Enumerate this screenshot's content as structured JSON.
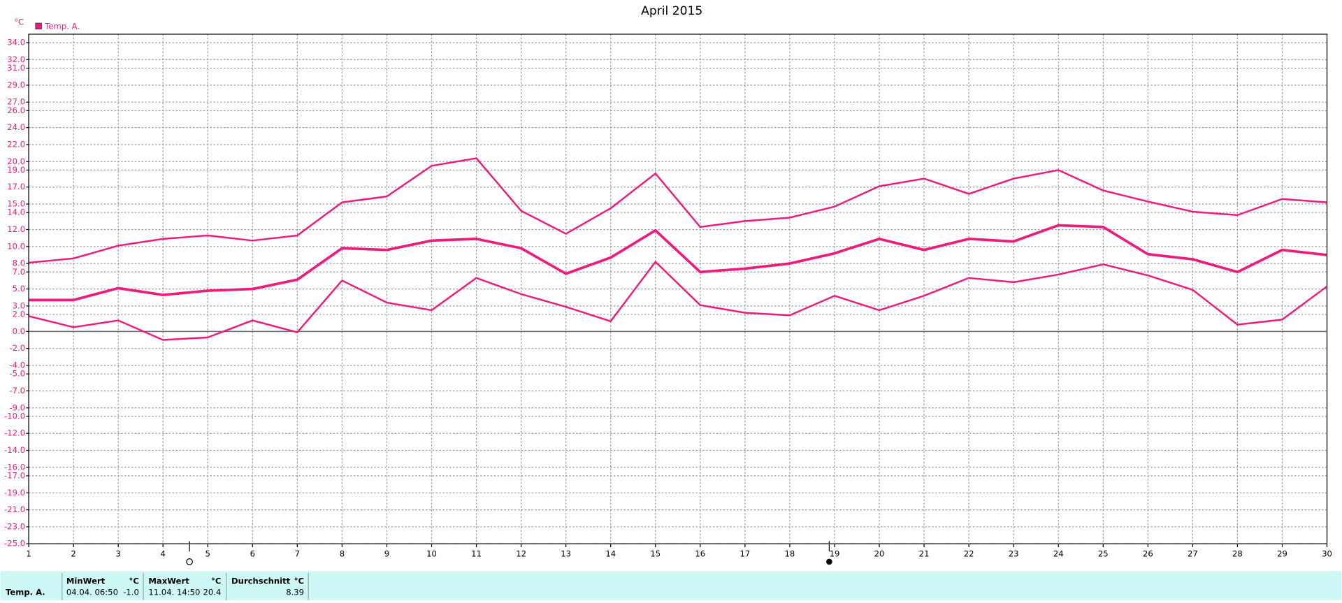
{
  "chart_data": {
    "type": "line",
    "title": "April 2015",
    "y_label": "°C",
    "x": [
      1,
      2,
      3,
      4,
      5,
      6,
      7,
      8,
      9,
      10,
      11,
      12,
      13,
      14,
      15,
      16,
      17,
      18,
      19,
      20,
      21,
      22,
      23,
      24,
      25,
      26,
      27,
      28,
      29,
      30
    ],
    "xlim": [
      1,
      30
    ],
    "xticks": [
      1,
      2,
      3,
      4,
      5,
      6,
      7,
      8,
      9,
      10,
      11,
      12,
      13,
      14,
      15,
      16,
      17,
      18,
      19,
      20,
      21,
      22,
      23,
      24,
      25,
      26,
      27,
      28,
      29,
      30
    ],
    "ylim": [
      -25,
      35
    ],
    "yticks": [
      {
        "value": 34,
        "label": "34.0"
      },
      {
        "value": 32,
        "label": "32.0"
      },
      {
        "value": 31,
        "label": "31.0"
      },
      {
        "value": 29,
        "label": "29.0"
      },
      {
        "value": 27,
        "label": "27.0"
      },
      {
        "value": 26,
        "label": "26.0"
      },
      {
        "value": 24,
        "label": "24.0"
      },
      {
        "value": 22,
        "label": "22.0"
      },
      {
        "value": 20,
        "label": "20.0"
      },
      {
        "value": 19,
        "label": "19.0"
      },
      {
        "value": 17,
        "label": "17.0"
      },
      {
        "value": 15,
        "label": "15.0"
      },
      {
        "value": 14,
        "label": "14.0"
      },
      {
        "value": 12,
        "label": "12.0"
      },
      {
        "value": 10,
        "label": "10.0"
      },
      {
        "value": 8,
        "label": "8.0"
      },
      {
        "value": 7,
        "label": "7.0"
      },
      {
        "value": 5,
        "label": "5.0"
      },
      {
        "value": 3,
        "label": "3.0"
      },
      {
        "value": 2,
        "label": "2.0"
      },
      {
        "value": 0,
        "label": "0.0"
      },
      {
        "value": -2,
        "label": "-2.0"
      },
      {
        "value": -4,
        "label": "-4.0"
      },
      {
        "value": -5,
        "label": "-5.0"
      },
      {
        "value": -7,
        "label": "-7.0"
      },
      {
        "value": -9,
        "label": "-9.0"
      },
      {
        "value": -10,
        "label": "-10.0"
      },
      {
        "value": -12,
        "label": "-12.0"
      },
      {
        "value": -14,
        "label": "-14.0"
      },
      {
        "value": -16,
        "label": "-16.0"
      },
      {
        "value": -17,
        "label": "-17.0"
      },
      {
        "value": -19,
        "label": "-19.0"
      },
      {
        "value": -21,
        "label": "-21.0"
      },
      {
        "value": -23,
        "label": "-23.0"
      },
      {
        "value": -25,
        "label": "-25.0"
      }
    ],
    "grid": true,
    "series": [
      {
        "name": "Temp. A.",
        "color": "#ee1a7c",
        "values": [
          3.7,
          3.7,
          5.1,
          4.3,
          4.8,
          5.0,
          6.1,
          9.8,
          9.6,
          10.7,
          10.9,
          9.8,
          6.8,
          8.7,
          11.9,
          7.0,
          7.4,
          8.0,
          9.2,
          10.9,
          9.6,
          10.9,
          10.6,
          12.5,
          12.3,
          9.1,
          8.5,
          7.0,
          9.6,
          9.0
        ],
        "max": [
          8.1,
          8.6,
          10.1,
          10.9,
          11.3,
          10.7,
          11.3,
          15.2,
          15.9,
          19.5,
          20.4,
          14.2,
          11.5,
          14.5,
          18.6,
          12.3,
          13.0,
          13.4,
          14.7,
          17.1,
          18.0,
          16.2,
          18.0,
          19.0,
          16.6,
          15.3,
          14.1,
          13.7,
          15.6,
          15.2
        ],
        "min": [
          1.8,
          0.5,
          1.3,
          -1.0,
          -0.7,
          1.3,
          -0.1,
          6.0,
          3.4,
          2.5,
          6.3,
          4.4,
          2.9,
          1.2,
          8.2,
          3.1,
          2.2,
          1.9,
          4.2,
          2.5,
          4.2,
          6.3,
          5.8,
          6.7,
          7.9,
          6.6,
          4.9,
          0.8,
          1.4,
          5.3
        ]
      }
    ]
  },
  "summary": {
    "row_label": "Temp. A.",
    "min": {
      "header": "MinWert",
      "unit": "°C",
      "time": "04.04.  06:50",
      "value": "-1.0"
    },
    "max": {
      "header": "MaxWert",
      "unit": "°C",
      "time": "11.04.  14:50",
      "value": "20.4"
    },
    "avg": {
      "header": "Durchschnitt",
      "unit": "°C",
      "value": "8.39"
    }
  }
}
